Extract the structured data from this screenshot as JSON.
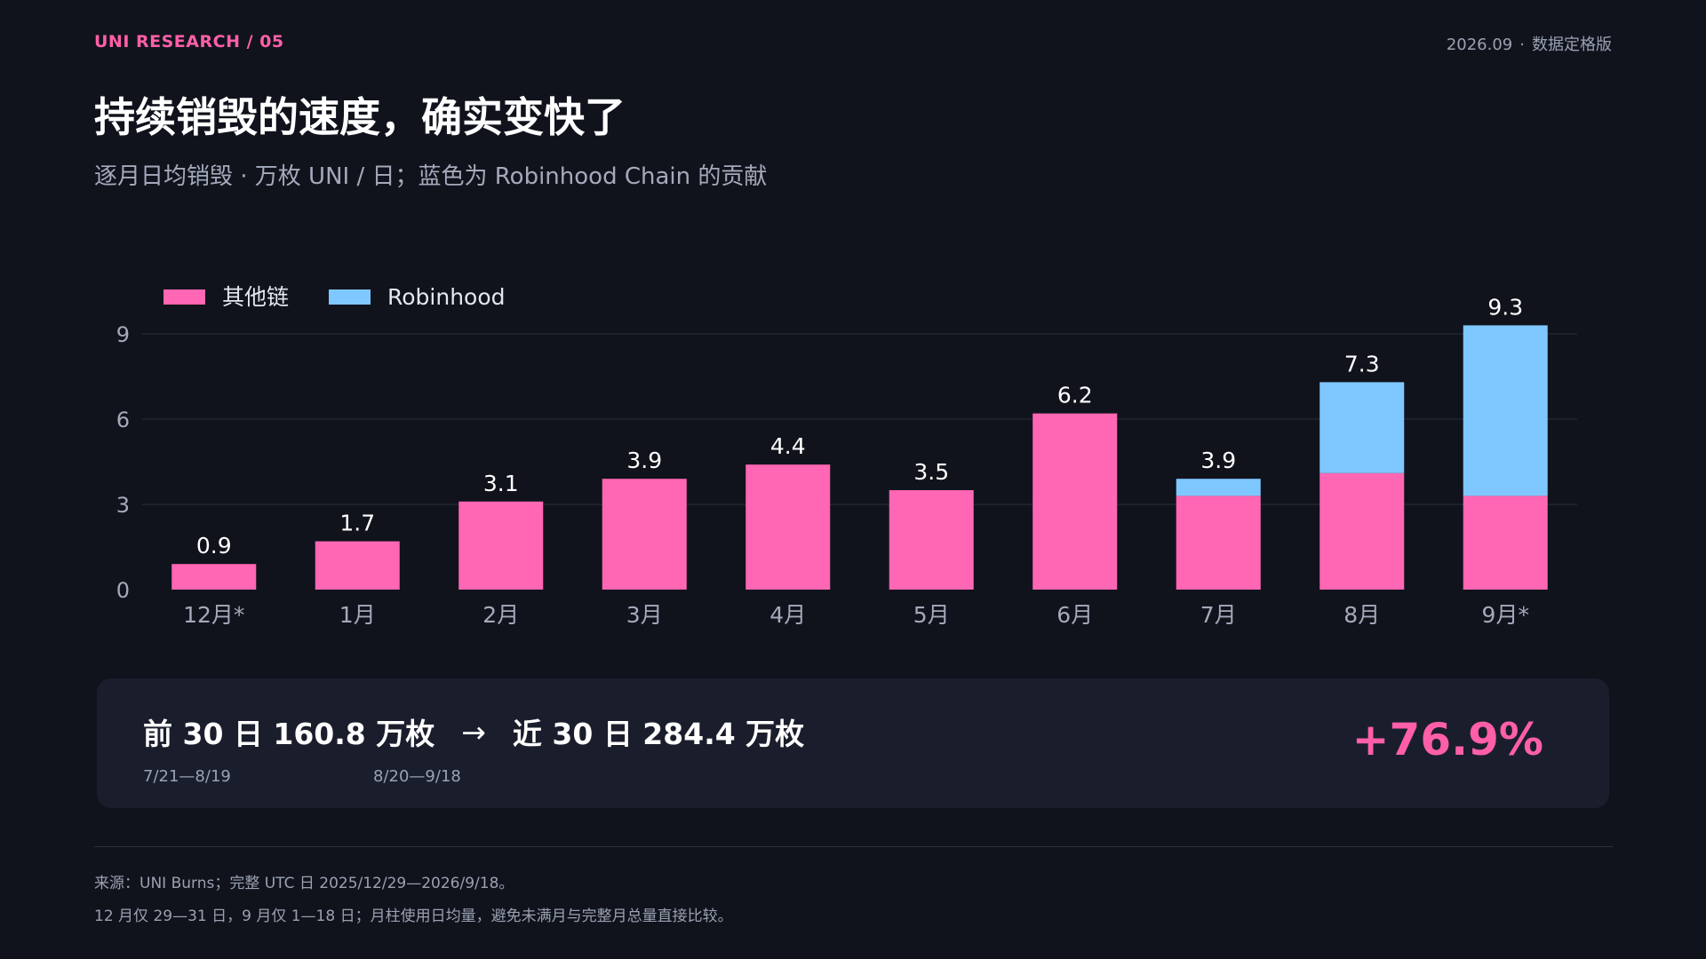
{
  "header": {
    "kicker": "UNI RESEARCH  /  05",
    "date": "2026.09",
    "edition": "数据定格版",
    "title": "持续销毁的速度，确实变快了",
    "subtitle": "逐月日均销毁 · 万枚 UNI / 日；蓝色为 Robinhood Chain 的贡献"
  },
  "colors": {
    "background": "#10131c",
    "accent": "#ff5fa8",
    "other_chain": "#ff66b3",
    "robinhood": "#7fc8ff",
    "grid": "#2a2f3d",
    "card": "#1a1e2c"
  },
  "chart_data": {
    "type": "bar",
    "stacked": true,
    "categories": [
      "12月*",
      "1月",
      "2月",
      "3月",
      "4月",
      "5月",
      "6月",
      "7月",
      "8月",
      "9月*"
    ],
    "series": [
      {
        "name": "其他链",
        "color": "#ff66b3",
        "values": [
          0.9,
          1.7,
          3.1,
          3.9,
          4.4,
          3.5,
          6.2,
          3.3,
          4.1,
          3.3
        ]
      },
      {
        "name": "Robinhood",
        "color": "#7fc8ff",
        "values": [
          0,
          0,
          0,
          0,
          0,
          0,
          0,
          0.6,
          3.2,
          6.0
        ]
      }
    ],
    "totals": [
      "0.9",
      "1.7",
      "3.1",
      "3.9",
      "4.4",
      "3.5",
      "6.2",
      "3.9",
      "7.3",
      "9.3"
    ],
    "yticks": [
      0,
      3,
      6,
      9
    ],
    "ylim": [
      0,
      9.3
    ],
    "grid": true,
    "legend": "top-left"
  },
  "summary": {
    "before_label": "前 30 日 160.8 万枚",
    "arrow": "→",
    "after_label": "近 30 日 284.4 万枚",
    "before_range": "7/21—8/19",
    "after_range": "8/20—9/18",
    "change": "+76.9%"
  },
  "footer": {
    "source": "来源：UNI Burns；完整 UTC 日 2025/12/29—2026/9/18。",
    "note": "12 月仅 29—31 日，9 月仅 1—18 日；月柱使用日均量，避免未满月与完整月总量直接比较。"
  }
}
